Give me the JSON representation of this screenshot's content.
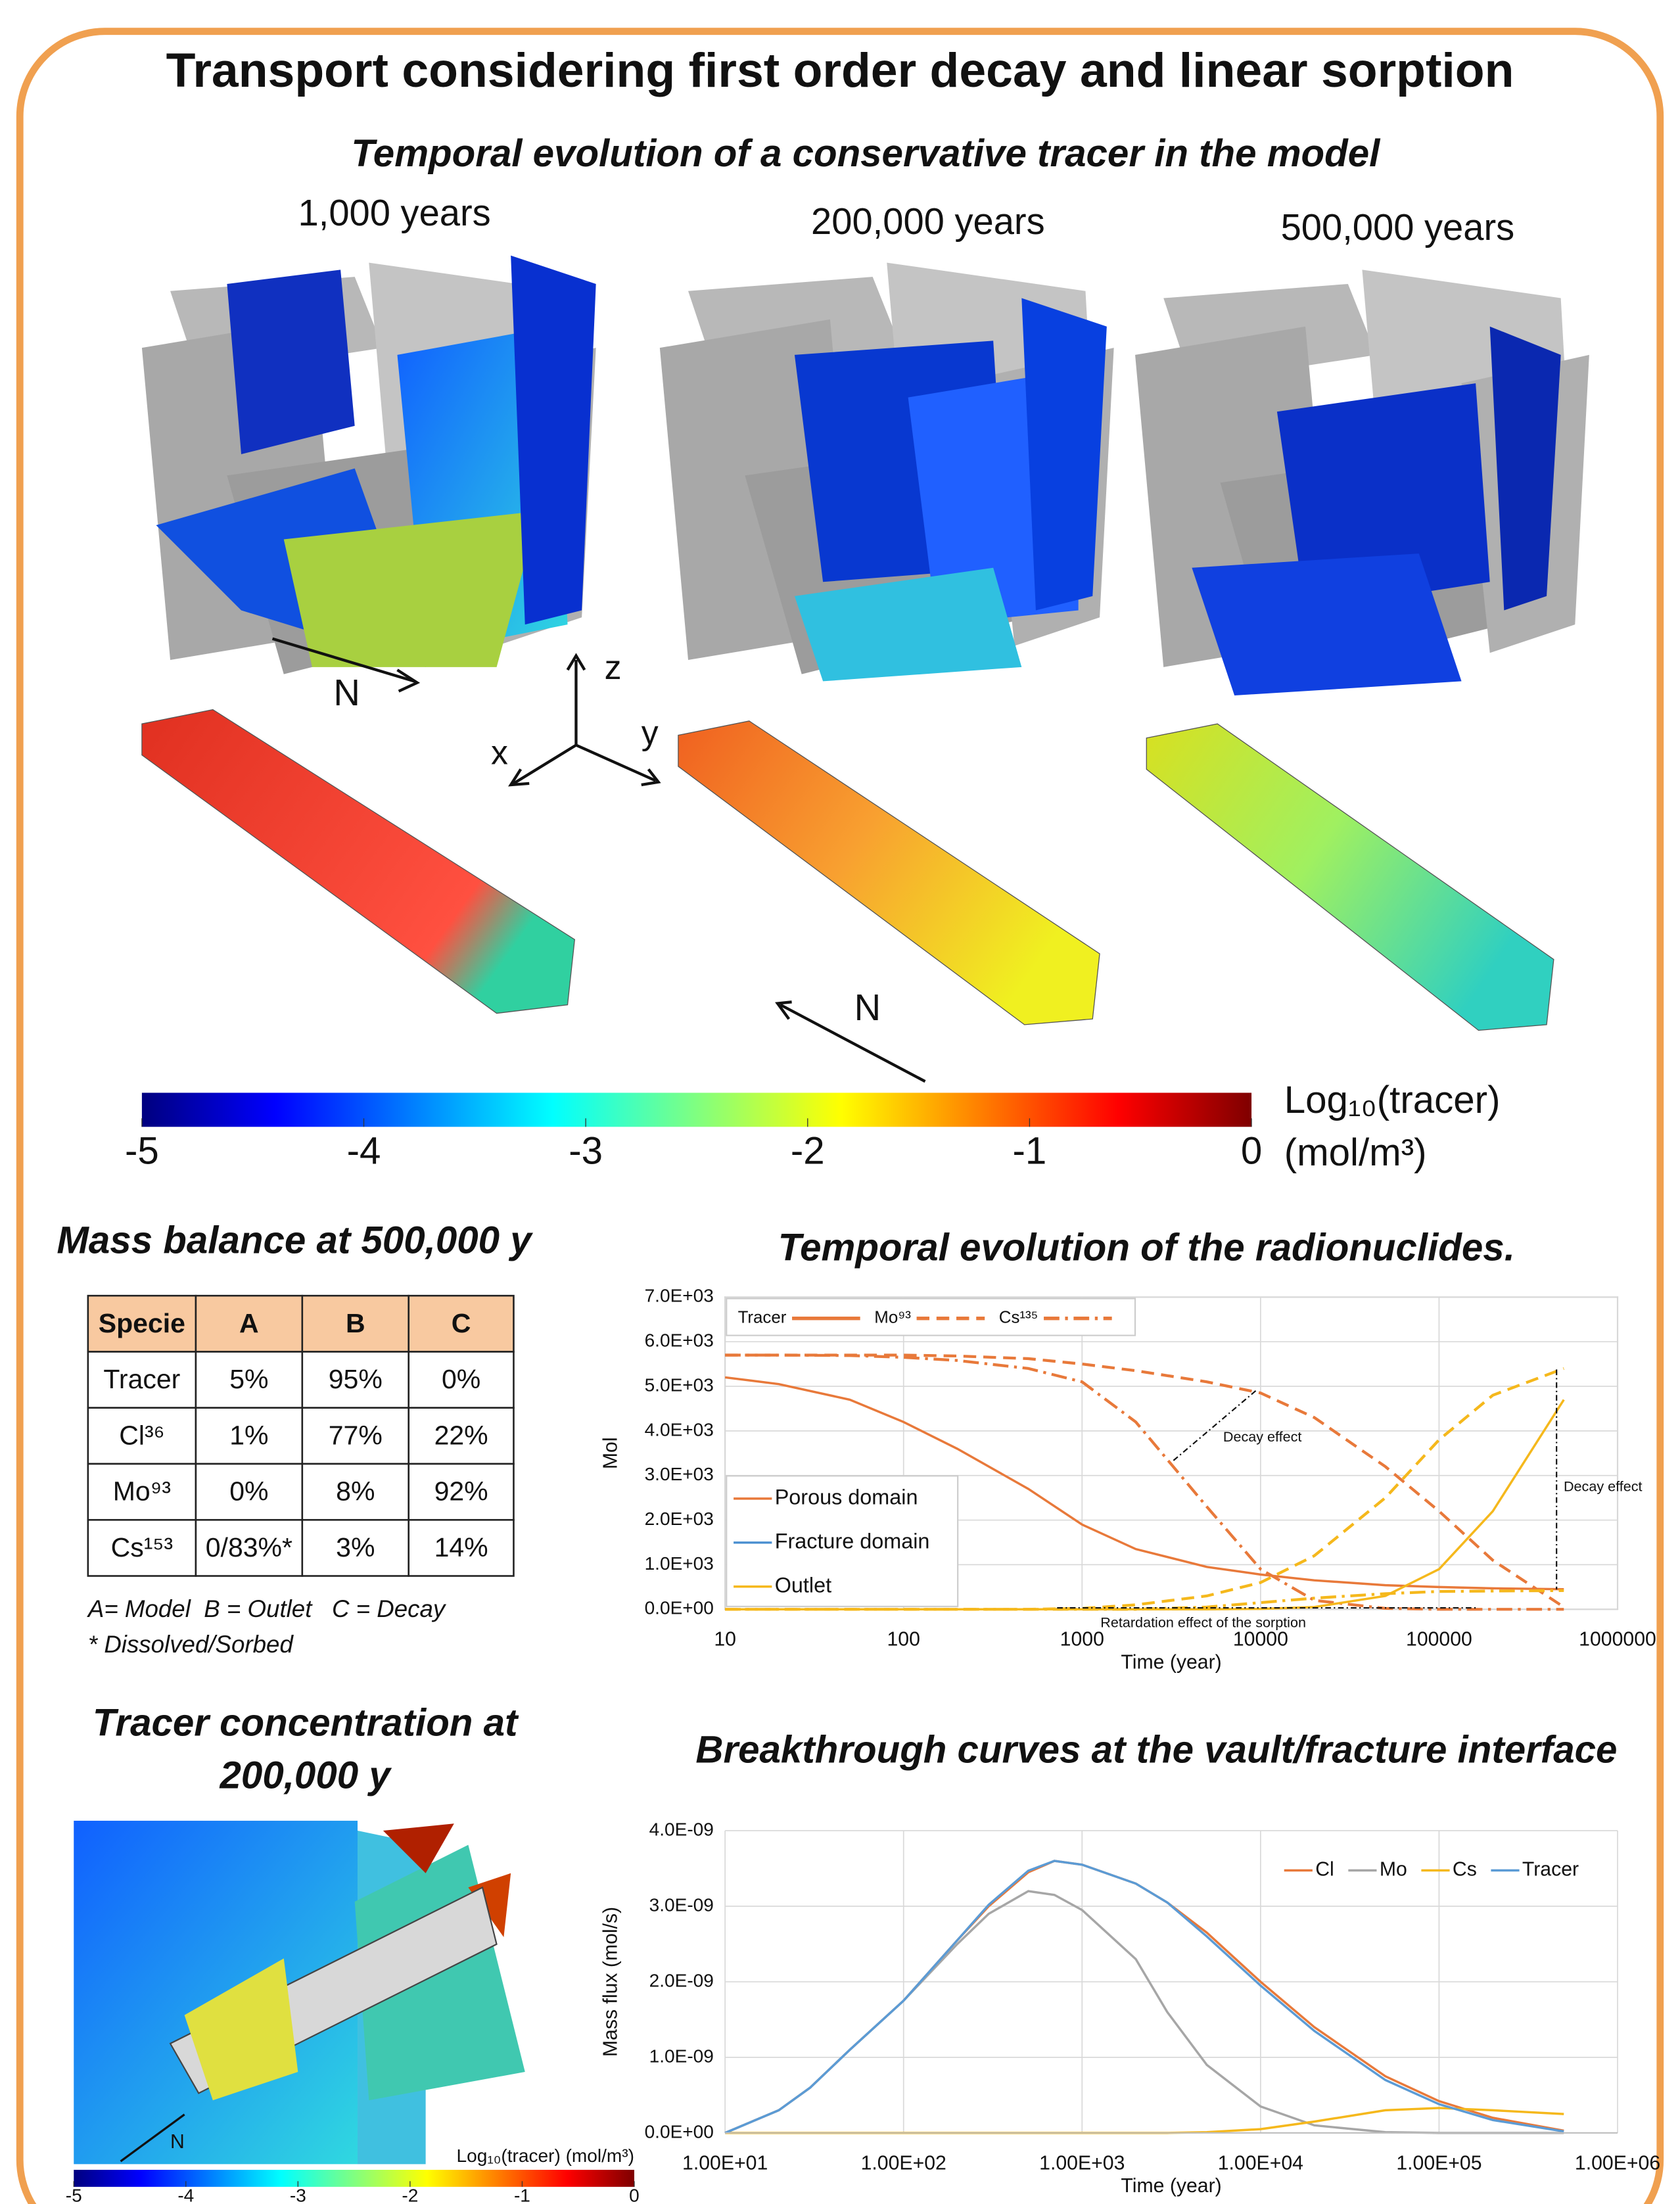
{
  "title": "Transport considering first order decay and linear sorption",
  "subtitle": "Temporal evolution of a conservative tracer in the model",
  "snapshots": [
    "1,000 years",
    "200,000 years",
    "500,000 years"
  ],
  "axis_labels": {
    "x": "x",
    "y": "y",
    "z": "z",
    "north": "N"
  },
  "colorbar": {
    "ticks": [
      -5,
      -4,
      -3,
      -2,
      -1,
      0
    ],
    "label": "Log₁₀(tracer)",
    "unit": "(mol/m³)"
  },
  "mass_balance": {
    "title": "Mass balance at 500,000 y",
    "header": [
      "Specie",
      "A",
      "B",
      "C"
    ],
    "rows": [
      [
        "Tracer",
        "5%",
        "95%",
        "0%"
      ],
      [
        "Cl³⁶",
        "1%",
        "77%",
        "22%"
      ],
      [
        "Mo⁹³",
        "0%",
        "8%",
        "92%"
      ],
      [
        "Cs¹⁵³",
        "0/83%*",
        "3%",
        "14%"
      ]
    ],
    "notes": [
      "A= Model  B = Outlet   C = Decay",
      "* Dissolved/Sorbed"
    ]
  },
  "concentration": {
    "title": [
      "Tracer concentration at",
      "200,000 y"
    ],
    "colorbar_label": "Log₁₀(tracer) (mol/m³)"
  },
  "radionuclide_chart": {
    "type": "line",
    "title": "Temporal evolution of the radionuclides.",
    "x_label": "Time (year)",
    "y_label": "Mol",
    "log_x": true,
    "xlim": [
      10,
      1000000
    ],
    "xticks": [
      10,
      100,
      1000,
      10000,
      100000,
      1000000
    ],
    "ylim": [
      0,
      7000
    ],
    "yticks": [
      {
        "value": 0,
        "label": "0.0E+00"
      },
      {
        "value": 1000,
        "label": "1.0E+03"
      },
      {
        "value": 2000,
        "label": "2.0E+03"
      },
      {
        "value": 3000,
        "label": "3.0E+03"
      },
      {
        "value": 4000,
        "label": "4.0E+03"
      },
      {
        "value": 5000,
        "label": "5.0E+03"
      },
      {
        "value": 6000,
        "label": "6.0E+03"
      },
      {
        "value": 7000,
        "label": "7.0E+03"
      }
    ],
    "grid": true,
    "species": [
      {
        "name": "Tracer",
        "dash": "solid"
      },
      {
        "name": "Mo⁹³",
        "dash": "dashed"
      },
      {
        "name": "Cs¹³⁵",
        "dash": "dashdot"
      }
    ],
    "domains": [
      {
        "name": "Porous domain",
        "color": "#e8793a"
      },
      {
        "name": "Fracture domain",
        "color": "#4a8fd0"
      },
      {
        "name": "Outlet",
        "color": "#f5b81c"
      }
    ],
    "x": [
      10,
      20,
      50,
      100,
      200,
      500,
      1000,
      2000,
      5000,
      10000,
      20000,
      50000,
      100000,
      200000,
      500000
    ],
    "series": [
      {
        "species": 0,
        "domain": 0,
        "values": [
          5200,
          5050,
          4700,
          4200,
          3600,
          2700,
          1900,
          1350,
          950,
          780,
          650,
          540,
          500,
          470,
          450
        ]
      },
      {
        "species": 1,
        "domain": 0,
        "values": [
          5700,
          5700,
          5700,
          5700,
          5680,
          5620,
          5500,
          5350,
          5100,
          4850,
          4300,
          3200,
          2200,
          1100,
          50
        ]
      },
      {
        "species": 2,
        "domain": 0,
        "values": [
          5700,
          5700,
          5690,
          5650,
          5580,
          5400,
          5100,
          4200,
          2300,
          900,
          200,
          20,
          0,
          0,
          0
        ]
      },
      {
        "species": 0,
        "domain": 2,
        "values": [
          0,
          0,
          0,
          0,
          0,
          0,
          0,
          0,
          0,
          10,
          50,
          300,
          900,
          2200,
          4700
        ]
      },
      {
        "species": 1,
        "domain": 2,
        "values": [
          0,
          0,
          0,
          0,
          0,
          0,
          20,
          100,
          300,
          600,
          1200,
          2500,
          3800,
          4800,
          5400
        ]
      },
      {
        "species": 2,
        "domain": 2,
        "values": [
          0,
          0,
          0,
          0,
          0,
          0,
          0,
          0,
          50,
          150,
          250,
          350,
          400,
          410,
          420
        ]
      }
    ],
    "annotations": [
      "Decay effect",
      "Decay effect",
      "Retardation effect of the sorption"
    ]
  },
  "breakthrough_chart": {
    "type": "line",
    "title": "Breakthrough curves at the vault/fracture interface",
    "x_label": "Time (year)",
    "y_label": "Mass flux (mol/s)",
    "log_x": true,
    "xlim": [
      10,
      1000000
    ],
    "xticks": [
      {
        "value": 10,
        "label": "1.00E+01"
      },
      {
        "value": 100,
        "label": "1.00E+02"
      },
      {
        "value": 1000,
        "label": "1.00E+03"
      },
      {
        "value": 10000,
        "label": "1.00E+04"
      },
      {
        "value": 100000,
        "label": "1.00E+05"
      },
      {
        "value": 1000000,
        "label": "1.00E+06"
      }
    ],
    "ylim": [
      0,
      4e-09
    ],
    "yticks": [
      {
        "value": 0,
        "label": "0.0E+00"
      },
      {
        "value": 1e-09,
        "label": "1.0E-09"
      },
      {
        "value": 2e-09,
        "label": "2.0E-09"
      },
      {
        "value": 3e-09,
        "label": "3.0E-09"
      },
      {
        "value": 4e-09,
        "label": "4.0E-09"
      }
    ],
    "grid": true,
    "x": [
      10,
      20,
      30,
      50,
      100,
      200,
      300,
      500,
      700,
      1000,
      2000,
      3000,
      5000,
      10000,
      20000,
      50000,
      100000,
      200000,
      500000
    ],
    "series": [
      {
        "name": "Cl",
        "color": "#e8793a",
        "values": [
          0,
          3e-10,
          6e-10,
          1.1e-09,
          1.75e-09,
          2.55e-09,
          3e-09,
          3.45e-09,
          3.6e-09,
          3.55e-09,
          3.3e-09,
          3.05e-09,
          2.65e-09,
          2e-09,
          1.4e-09,
          7.5e-10,
          4.2e-10,
          2e-10,
          3e-11
        ]
      },
      {
        "name": "Mo",
        "color": "#a6a6a6",
        "values": [
          0,
          3e-10,
          6e-10,
          1.1e-09,
          1.75e-09,
          2.5e-09,
          2.9e-09,
          3.2e-09,
          3.15e-09,
          2.95e-09,
          2.3e-09,
          1.6e-09,
          9e-10,
          3.5e-10,
          1e-10,
          1e-11,
          0,
          0,
          0
        ]
      },
      {
        "name": "Cs",
        "color": "#f5b81c",
        "values": [
          0,
          0,
          0,
          0,
          0,
          0,
          0,
          0,
          0,
          0,
          0,
          0,
          1e-11,
          5e-11,
          1.5e-10,
          3e-10,
          3.3e-10,
          3e-10,
          2.5e-10
        ]
      },
      {
        "name": "Tracer",
        "color": "#5b9bd5",
        "values": [
          0,
          3e-10,
          6e-10,
          1.1e-09,
          1.75e-09,
          2.55e-09,
          3.02e-09,
          3.47e-09,
          3.6e-09,
          3.55e-09,
          3.3e-09,
          3.05e-09,
          2.6e-09,
          1.95e-09,
          1.35e-09,
          7e-10,
          3.8e-10,
          1.7e-10,
          2e-11
        ]
      }
    ]
  }
}
